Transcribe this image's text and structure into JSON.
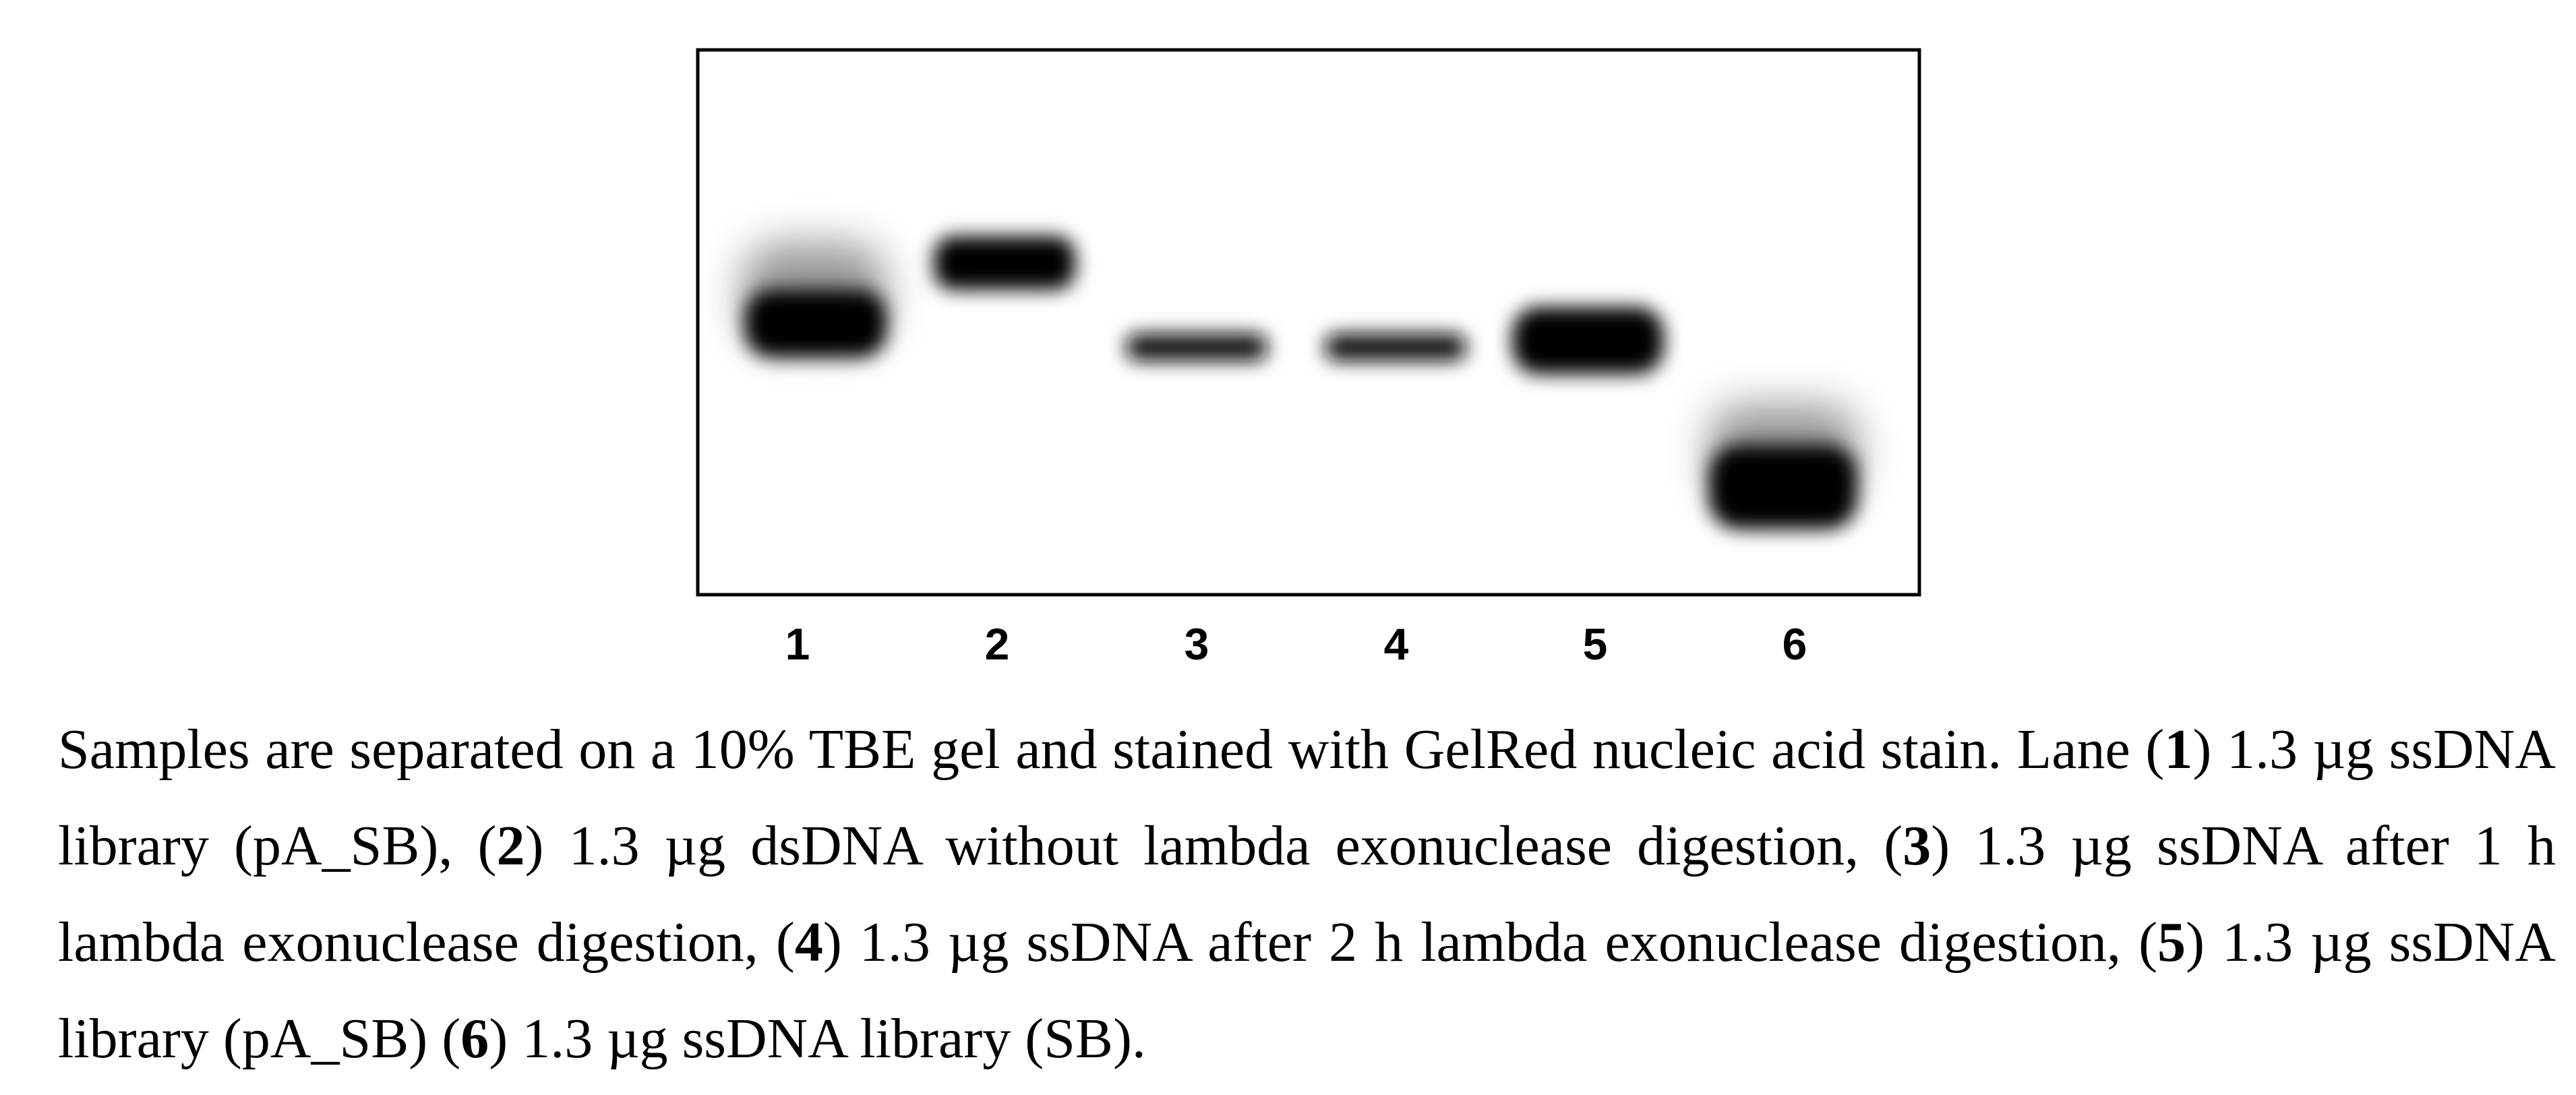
{
  "figure": {
    "lane_labels": [
      "1",
      "2",
      "3",
      "4",
      "5",
      "6"
    ],
    "caption": [
      "Samples are separated on a 10% TBE gel and stained with GelRed nucleic acid stain. Lane (",
      "1",
      ") 1.3 µg ssDNA library (pA_SB), (",
      "2",
      ") 1.3 µg dsDNA without lambda exonuclease digestion, (",
      "3",
      ") 1.3 µg ssDNA after 1 h lambda exonuclease digestion, (",
      "4",
      ") 1.3 µg ssDNA after 2 h lambda exonuclease digestion, (",
      "5",
      ") 1.3 µg ssDNA library (pA_SB) (",
      "6",
      ") 1.3 µg ssDNA library (SB)."
    ]
  }
}
